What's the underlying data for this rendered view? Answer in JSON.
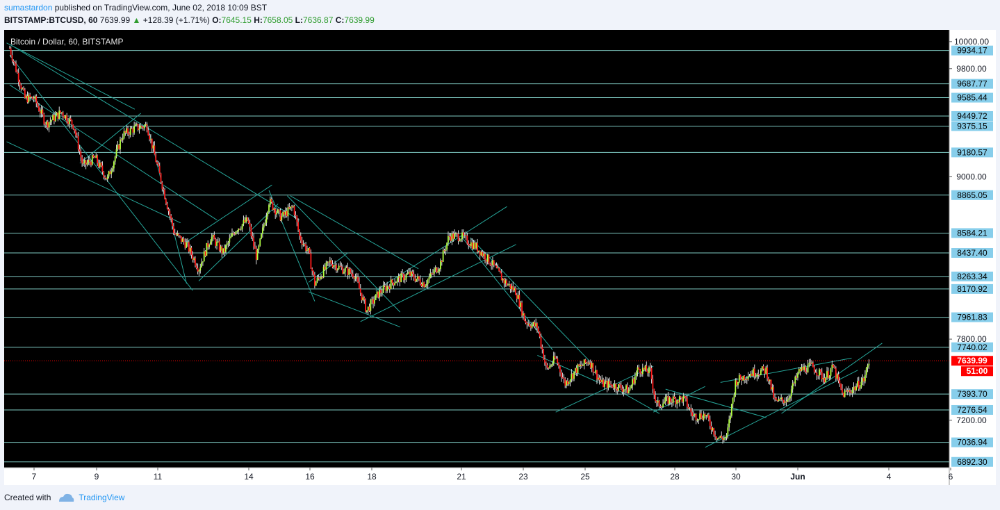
{
  "header": {
    "author": "sumastardon",
    "published_text": "published on TradingView.com, June 02, 2018 10:09 BST",
    "symbol": "BITSTAMP:BTCUSD, 60",
    "last": "7639.99",
    "change": "+128.39 (+1.71%)",
    "o_label": "O:",
    "o_value": "7645.15",
    "h_label": "H:",
    "h_value": "7658.05",
    "l_label": "L:",
    "l_value": "7636.87",
    "c_label": "C:",
    "c_value": "7639.99"
  },
  "footer": {
    "created_with": "Created with",
    "brand": "TradingView"
  },
  "colors": {
    "background": "#000000",
    "up_candle": "#b2ff40",
    "down_candle": "#ff1a1a",
    "wick": "#e0e0e0",
    "level_line": "#80cbc4",
    "channel_line": "#26a69a",
    "label_bg": "#87ceeb",
    "price_label_bg": "#ff0000",
    "axis_bg": "#ffffff"
  },
  "chart_data": {
    "type": "candlestick",
    "title": "Bitcoin / Dollar, 60, BITSTAMP",
    "ylim": [
      6850,
      10020
    ],
    "x_ticks": [
      "7",
      "9",
      "11",
      "14",
      "16",
      "18",
      "21",
      "23",
      "25",
      "28",
      "30",
      "Jun",
      "4",
      "6"
    ],
    "y_ticks": [
      "10000.00",
      "9800.00",
      "9000.00",
      "7800.00",
      "7200.00"
    ],
    "horizontal_levels": [
      "9934.17",
      "9687.77",
      "9585.44",
      "9449.72",
      "9375.15",
      "9180.57",
      "8865.05",
      "8584.21",
      "8437.40",
      "8263.34",
      "8170.92",
      "7961.83",
      "7740.02",
      "7393.70",
      "7276.54",
      "7036.94",
      "6892.30"
    ],
    "current_price": "7639.99",
    "countdown": "51:00",
    "close_path": [
      {
        "day": 6.2,
        "price": 9950
      },
      {
        "day": 6.7,
        "price": 9580
      },
      {
        "day": 7.0,
        "price": 9580
      },
      {
        "day": 7.4,
        "price": 9390
      },
      {
        "day": 7.9,
        "price": 9480
      },
      {
        "day": 8.3,
        "price": 9380
      },
      {
        "day": 8.6,
        "price": 9080
      },
      {
        "day": 9.0,
        "price": 9140
      },
      {
        "day": 9.4,
        "price": 8980
      },
      {
        "day": 9.9,
        "price": 9310
      },
      {
        "day": 10.3,
        "price": 9360
      },
      {
        "day": 10.7,
        "price": 9380
      },
      {
        "day": 11.2,
        "price": 8940
      },
      {
        "day": 11.6,
        "price": 8580
      },
      {
        "day": 12.0,
        "price": 8500
      },
      {
        "day": 12.4,
        "price": 8320
      },
      {
        "day": 12.8,
        "price": 8560
      },
      {
        "day": 13.2,
        "price": 8440
      },
      {
        "day": 13.6,
        "price": 8610
      },
      {
        "day": 14.0,
        "price": 8680
      },
      {
        "day": 14.3,
        "price": 8400
      },
      {
        "day": 14.7,
        "price": 8820
      },
      {
        "day": 15.1,
        "price": 8700
      },
      {
        "day": 15.5,
        "price": 8780
      },
      {
        "day": 15.7,
        "price": 8560
      },
      {
        "day": 16.0,
        "price": 8440
      },
      {
        "day": 16.2,
        "price": 8210
      },
      {
        "day": 16.7,
        "price": 8370
      },
      {
        "day": 17.0,
        "price": 8330
      },
      {
        "day": 17.5,
        "price": 8280
      },
      {
        "day": 17.9,
        "price": 8010
      },
      {
        "day": 18.3,
        "price": 8140
      },
      {
        "day": 18.8,
        "price": 8230
      },
      {
        "day": 19.3,
        "price": 8280
      },
      {
        "day": 19.8,
        "price": 8210
      },
      {
        "day": 20.3,
        "price": 8350
      },
      {
        "day": 20.6,
        "price": 8560
      },
      {
        "day": 21.0,
        "price": 8560
      },
      {
        "day": 21.5,
        "price": 8480
      },
      {
        "day": 22.0,
        "price": 8360
      },
      {
        "day": 22.4,
        "price": 8230
      },
      {
        "day": 22.8,
        "price": 8150
      },
      {
        "day": 23.1,
        "price": 7930
      },
      {
        "day": 23.5,
        "price": 7890
      },
      {
        "day": 23.8,
        "price": 7570
      },
      {
        "day": 24.1,
        "price": 7660
      },
      {
        "day": 24.4,
        "price": 7470
      },
      {
        "day": 24.8,
        "price": 7580
      },
      {
        "day": 25.2,
        "price": 7640
      },
      {
        "day": 25.6,
        "price": 7470
      },
      {
        "day": 26.0,
        "price": 7460
      },
      {
        "day": 26.5,
        "price": 7420
      },
      {
        "day": 26.8,
        "price": 7580
      },
      {
        "day": 27.2,
        "price": 7560
      },
      {
        "day": 27.4,
        "price": 7310
      },
      {
        "day": 27.8,
        "price": 7350
      },
      {
        "day": 28.3,
        "price": 7360
      },
      {
        "day": 28.6,
        "price": 7230
      },
      {
        "day": 29.0,
        "price": 7240
      },
      {
        "day": 29.4,
        "price": 7070
      },
      {
        "day": 29.7,
        "price": 7070
      },
      {
        "day": 30.0,
        "price": 7490
      },
      {
        "day": 30.5,
        "price": 7550
      },
      {
        "day": 31.0,
        "price": 7570
      },
      {
        "day": 31.3,
        "price": 7330
      },
      {
        "day": 31.7,
        "price": 7360
      },
      {
        "day": 32.1,
        "price": 7570
      },
      {
        "day": 32.5,
        "price": 7600
      },
      {
        "day": 32.9,
        "price": 7510
      },
      {
        "day": 33.2,
        "price": 7590
      },
      {
        "day": 33.5,
        "price": 7390
      },
      {
        "day": 33.9,
        "price": 7440
      },
      {
        "day": 34.2,
        "price": 7500
      },
      {
        "day": 34.4,
        "price": 7660
      }
    ],
    "trend_lines": [
      [
        {
          "day": 6.1,
          "price": 9990
        },
        {
          "day": 10.3,
          "price": 9500
        }
      ],
      [
        {
          "day": 6.2,
          "price": 9900
        },
        {
          "day": 12.2,
          "price": 8160
        }
      ],
      [
        {
          "day": 6.1,
          "price": 9260
        },
        {
          "day": 11.8,
          "price": 8660
        }
      ],
      [
        {
          "day": 6.2,
          "price": 9680
        },
        {
          "day": 13.0,
          "price": 8680
        }
      ],
      [
        {
          "day": 10.7,
          "price": 9400
        },
        {
          "day": 12.0,
          "price": 8210
        }
      ],
      [
        {
          "day": 8.5,
          "price": 9100
        },
        {
          "day": 10.5,
          "price": 9470
        }
      ],
      [
        {
          "day": 12.4,
          "price": 8230
        },
        {
          "day": 15.0,
          "price": 8800
        }
      ],
      [
        {
          "day": 12.0,
          "price": 8520
        },
        {
          "day": 14.8,
          "price": 8940
        }
      ],
      [
        {
          "day": 6.2,
          "price": 9980
        },
        {
          "day": 15.7,
          "price": 8680
        }
      ],
      [
        {
          "day": 14.7,
          "price": 8900
        },
        {
          "day": 16.2,
          "price": 8080
        }
      ],
      [
        {
          "day": 15.3,
          "price": 8860
        },
        {
          "day": 19.0,
          "price": 8000
        }
      ],
      [
        {
          "day": 15.4,
          "price": 8860
        },
        {
          "day": 19.6,
          "price": 8320
        }
      ],
      [
        {
          "day": 16.0,
          "price": 8150
        },
        {
          "day": 19.0,
          "price": 7890
        }
      ],
      [
        {
          "day": 16.0,
          "price": 8220
        },
        {
          "day": 17.3,
          "price": 8440
        }
      ],
      [
        {
          "day": 17.7,
          "price": 7930
        },
        {
          "day": 22.8,
          "price": 8500
        }
      ],
      [
        {
          "day": 18.2,
          "price": 8160
        },
        {
          "day": 22.5,
          "price": 8780
        }
      ],
      [
        {
          "day": 21.3,
          "price": 8550
        },
        {
          "day": 25.2,
          "price": 7640
        }
      ],
      [
        {
          "day": 21.0,
          "price": 8560
        },
        {
          "day": 24.0,
          "price": 7720
        }
      ],
      [
        {
          "day": 23.5,
          "price": 7680
        },
        {
          "day": 25.5,
          "price": 7480
        }
      ],
      [
        {
          "day": 24.1,
          "price": 7260
        },
        {
          "day": 27.3,
          "price": 7600
        }
      ],
      [
        {
          "day": 26.0,
          "price": 7440
        },
        {
          "day": 27.5,
          "price": 7250
        }
      ],
      [
        {
          "day": 27.3,
          "price": 7260
        },
        {
          "day": 29.0,
          "price": 7450
        }
      ],
      [
        {
          "day": 27.7,
          "price": 7430
        },
        {
          "day": 31.0,
          "price": 7220
        }
      ],
      [
        {
          "day": 29.0,
          "price": 7000
        },
        {
          "day": 34.0,
          "price": 7570
        }
      ],
      [
        {
          "day": 29.5,
          "price": 7480
        },
        {
          "day": 33.8,
          "price": 7660
        }
      ],
      [
        {
          "day": 31.5,
          "price": 7250
        },
        {
          "day": 34.8,
          "price": 7770
        }
      ]
    ]
  }
}
